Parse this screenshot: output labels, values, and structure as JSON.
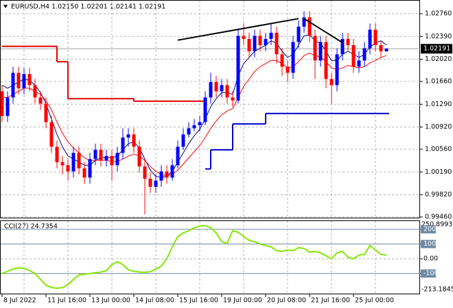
{
  "chart_data": [
    {
      "type": "candlestick",
      "title": "EURUSD,H4  1.02150 1.02201 1.02141 1.02191",
      "categories": [
        "8 Jul 2022",
        null,
        null,
        null,
        null,
        null,
        null,
        null,
        "11 Jul 16:00",
        null,
        null,
        null,
        null,
        null,
        null,
        null,
        "13 Jul 00:00",
        null,
        null,
        null,
        null,
        null,
        null,
        null,
        "14 Jul 08:00",
        null,
        null,
        null,
        null,
        null,
        null,
        null,
        "15 Jul 16:00",
        null,
        null,
        null,
        null,
        null,
        null,
        null,
        "19 Jul 00:00",
        null,
        null,
        null,
        null,
        null,
        null,
        null,
        "20 Jul 08:00",
        null,
        null,
        null,
        null,
        null,
        null,
        null,
        "21 Jul 16:00",
        null,
        null,
        null,
        null,
        null,
        null,
        null,
        "25 Jul 00:00",
        null,
        null,
        null,
        null,
        null,
        null
      ],
      "open": [
        1.015,
        1.011,
        1.014,
        1.018,
        1.0155,
        1.0178,
        1.016,
        1.014,
        1.013,
        1.01,
        1.006,
        1.0035,
        1.003,
        1.002,
        1.005,
        1.0025,
        1.001,
        1.004,
        1.0055,
        1.0038,
        1.0045,
        1.003,
        1.005,
        1.0075,
        1.008,
        1.006,
        1.0028,
        1.0008,
        0.9995,
        1.0005,
        1.002,
        1.001,
        1.003,
        1.006,
        1.008,
        1.009,
        1.0095,
        1.01,
        1.014,
        1.0165,
        1.015,
        1.016,
        1.014,
        1.0135,
        1.024,
        1.0235,
        1.0215,
        1.024,
        1.0225,
        1.0235,
        1.0245,
        1.021,
        1.019,
        1.018,
        1.023,
        1.0255,
        1.027,
        1.024,
        1.02,
        1.023,
        1.017,
        1.016,
        1.021,
        1.0235,
        1.0225,
        1.019,
        1.02,
        1.022,
        1.025,
        1.0225,
        1.0215
      ],
      "high": [
        1.016,
        1.015,
        1.019,
        1.019,
        1.0188,
        1.0188,
        1.017,
        1.015,
        1.014,
        1.011,
        1.007,
        1.0045,
        1.004,
        1.006,
        1.006,
        1.0035,
        1.005,
        1.0065,
        1.0065,
        1.0055,
        1.0055,
        1.006,
        1.009,
        1.009,
        1.009,
        1.007,
        1.004,
        1.0018,
        1.0015,
        1.003,
        1.003,
        1.004,
        1.007,
        1.009,
        1.01,
        1.0105,
        1.011,
        1.015,
        1.018,
        1.0175,
        1.017,
        1.017,
        1.015,
        1.025,
        1.026,
        1.0245,
        1.025,
        1.025,
        1.0245,
        1.026,
        1.0255,
        1.022,
        1.02,
        1.024,
        1.0265,
        1.028,
        1.028,
        1.025,
        1.024,
        1.024,
        1.018,
        1.022,
        1.0245,
        1.0245,
        1.0235,
        1.0215,
        1.023,
        1.026,
        1.026,
        1.0232,
        1.02201
      ],
      "low": [
        1.01,
        1.01,
        1.013,
        1.0145,
        1.0145,
        1.015,
        1.013,
        1.012,
        1.009,
        1.005,
        1.0025,
        1.0015,
        1.0005,
        1.001,
        1.0015,
        1.0,
        1.0,
        1.003,
        1.0028,
        1.0028,
        1.0005,
        1.002,
        1.004,
        1.006,
        1.005,
        1.0018,
        0.995,
        0.9985,
        0.9985,
        0.9995,
        1.0,
        1.0005,
        1.0025,
        1.0055,
        1.0075,
        1.0085,
        1.0085,
        1.0095,
        1.013,
        1.014,
        1.014,
        1.013,
        1.0125,
        1.013,
        1.0225,
        1.0205,
        1.0205,
        1.0215,
        1.0215,
        1.0225,
        1.0195,
        1.0175,
        1.0165,
        1.017,
        1.022,
        1.0245,
        1.023,
        1.017,
        1.019,
        1.0155,
        1.013,
        1.015,
        1.02,
        1.0215,
        1.018,
        1.018,
        1.019,
        1.021,
        1.0215,
        1.0205,
        1.02141
      ],
      "close": [
        1.011,
        1.014,
        1.018,
        1.0155,
        1.0178,
        1.016,
        1.014,
        1.013,
        1.01,
        1.006,
        1.0035,
        1.003,
        1.002,
        1.005,
        1.0025,
        1.001,
        1.004,
        1.0055,
        1.0038,
        1.0045,
        1.003,
        1.005,
        1.0075,
        1.008,
        1.006,
        1.0028,
        1.0008,
        0.9995,
        1.0005,
        1.002,
        1.001,
        1.003,
        1.006,
        1.008,
        1.009,
        1.0095,
        1.01,
        1.014,
        1.0165,
        1.015,
        1.016,
        1.014,
        1.0135,
        1.024,
        1.0235,
        1.0215,
        1.024,
        1.0225,
        1.0235,
        1.0245,
        1.021,
        1.019,
        1.018,
        1.023,
        1.0255,
        1.027,
        1.024,
        1.02,
        1.023,
        1.017,
        1.016,
        1.021,
        1.0235,
        1.0225,
        1.019,
        1.02,
        1.022,
        1.025,
        1.0225,
        1.0215,
        1.02191
      ],
      "up_color": "#0000ff",
      "down_color": "#ff0000",
      "ylim": [
        0.99449,
        1.0296
      ],
      "yticks": [
        {
          "value": 1.0276,
          "label": "1.02760"
        },
        {
          "value": 1.0239,
          "label": "1.02390"
        },
        {
          "value": 1.0202,
          "label": "1.02020"
        },
        {
          "value": 1.0166,
          "label": "1.01660"
        },
        {
          "value": 1.0129,
          "label": "1.01290"
        },
        {
          "value": 1.0092,
          "label": "1.00920"
        },
        {
          "value": 1.0056,
          "label": "1.00560"
        },
        {
          "value": 1.0019,
          "label": "1.00190"
        },
        {
          "value": 0.9982,
          "label": "0.99820"
        },
        {
          "value": 0.9946,
          "label": "0.99460"
        }
      ],
      "grid": true,
      "last_price": {
        "value": 1.02191,
        "label": "1.02191"
      },
      "overlays": [
        {
          "color": "#000080",
          "step": false,
          "values": [
            1.016,
            1.0155,
            1.016,
            1.0165,
            1.017,
            1.0168,
            1.016,
            1.0148,
            1.013,
            1.0105,
            1.008,
            1.006,
            1.0045,
            1.004,
            1.0035,
            1.003,
            1.003,
            1.0038,
            1.0042,
            1.0043,
            1.0042,
            1.0045,
            1.0055,
            1.0065,
            1.0068,
            1.0058,
            1.004,
            1.0022,
            1.0012,
            1.001,
            1.0012,
            1.002,
            1.0035,
            1.005,
            1.0065,
            1.0078,
            1.0088,
            1.0105,
            1.0125,
            1.0138,
            1.0148,
            1.0148,
            1.0145,
            1.0175,
            1.0195,
            1.0205,
            1.0215,
            1.022,
            1.0225,
            1.0232,
            1.0228,
            1.0215,
            1.0205,
            1.021,
            1.0225,
            1.024,
            1.0242,
            1.0232,
            1.0228,
            1.0215,
            1.02,
            1.02,
            1.021,
            1.0215,
            1.021,
            1.0205,
            1.021,
            1.0222,
            1.0228,
            1.0232,
            1.0225
          ]
        },
        {
          "color": "#ff0000",
          "step": false,
          "values": [
            1.014,
            1.014,
            1.0145,
            1.015,
            1.0155,
            1.0155,
            1.015,
            1.0145,
            1.0135,
            1.012,
            1.01,
            1.0082,
            1.0068,
            1.0058,
            1.005,
            1.0042,
            1.0038,
            1.0038,
            1.0038,
            1.0038,
            1.0036,
            1.0036,
            1.004,
            1.0045,
            1.0048,
            1.0045,
            1.0038,
            1.0028,
            1.002,
            1.0015,
            1.0013,
            1.0015,
            1.0022,
            1.0032,
            1.0042,
            1.0052,
            1.0062,
            1.0075,
            1.009,
            1.0102,
            1.0112,
            1.0118,
            1.0122,
            1.014,
            1.0158,
            1.017,
            1.0182,
            1.019,
            1.0195,
            1.02,
            1.02,
            1.0195,
            1.0188,
            1.019,
            1.0198,
            1.0208,
            1.0212,
            1.0208,
            1.0206,
            1.0198,
            1.0188,
            1.0185,
            1.0188,
            1.0192,
            1.019,
            1.0188,
            1.019,
            1.0196,
            1.02,
            1.0205,
            1.0208
          ]
        },
        {
          "color": "#e00000",
          "step": true,
          "values": [
            1.0223,
            1.0223,
            1.0223,
            1.0223,
            1.0223,
            1.0223,
            1.0223,
            1.0223,
            1.0223,
            1.0223,
            1.0198,
            1.0198,
            1.0138,
            1.0138,
            1.0138,
            1.0138,
            1.0138,
            1.0138,
            1.0138,
            1.0138,
            1.0138,
            1.0138,
            1.0138,
            1.0138,
            1.0134,
            1.0134,
            1.0134,
            1.0134,
            1.0134,
            1.0134,
            1.0134,
            1.0134,
            1.0134,
            1.0134,
            1.0134,
            1.0134,
            1.0134,
            null,
            null,
            null,
            null,
            null,
            null,
            null,
            null,
            null,
            null,
            null,
            null,
            null,
            null,
            null,
            null,
            null,
            null,
            null,
            null,
            null,
            null,
            null,
            null,
            null,
            null,
            null,
            null,
            null,
            null,
            null,
            null,
            null,
            null
          ]
        },
        {
          "color": "#0000cc",
          "step": true,
          "values": [
            null,
            null,
            null,
            null,
            null,
            null,
            null,
            null,
            null,
            null,
            null,
            null,
            null,
            null,
            null,
            null,
            null,
            null,
            null,
            null,
            null,
            null,
            null,
            null,
            null,
            null,
            null,
            null,
            null,
            null,
            null,
            null,
            null,
            null,
            null,
            null,
            null,
            1.0024,
            1.0055,
            1.0055,
            1.0055,
            1.0055,
            1.0097,
            1.0097,
            1.0097,
            1.0097,
            1.0097,
            1.0097,
            1.0114,
            1.0114,
            1.0114,
            1.0114,
            1.0114,
            1.0114,
            1.0114,
            1.0114,
            1.0114,
            1.0114,
            1.0114,
            1.0114,
            1.0114,
            1.0114,
            1.0114,
            1.0114,
            1.0114,
            1.0114,
            1.0114,
            1.0114,
            1.0114,
            1.0114,
            1.0114
          ]
        }
      ],
      "trendlines": [
        {
          "color": "#000000",
          "x": [
            32,
            54
          ],
          "values": [
            1.0233,
            1.0268
          ]
        },
        {
          "color": "#000000",
          "x": [
            55,
            62
          ],
          "values": [
            1.0268,
            1.0229
          ]
        }
      ]
    },
    {
      "type": "line",
      "title": "CCI(27) 24.7354",
      "color": "#80e800",
      "values": [
        -100,
        -85,
        -70,
        -62,
        -65,
        -80,
        -100,
        -140,
        -180,
        -195,
        -200,
        -195,
        -175,
        -140,
        -110,
        -105,
        -100,
        -95,
        -90,
        -80,
        -40,
        -20,
        -40,
        -75,
        -85,
        -90,
        -92,
        -88,
        -70,
        -50,
        0,
        80,
        150,
        175,
        190,
        210,
        222,
        225,
        210,
        175,
        115,
        105,
        190,
        180,
        150,
        125,
        115,
        100,
        90,
        80,
        55,
        50,
        60,
        55,
        75,
        70,
        45,
        50,
        40,
        20,
        0,
        40,
        50,
        10,
        0,
        25,
        30,
        90,
        60,
        30,
        24.7354
      ],
      "ylim": [
        -213.1845,
        250.8993
      ],
      "yticks": [
        200,
        100,
        {
          "value": 0,
          "label": "0.00"
        },
        -100
      ],
      "level_color": "#6f8aa6"
    }
  ]
}
